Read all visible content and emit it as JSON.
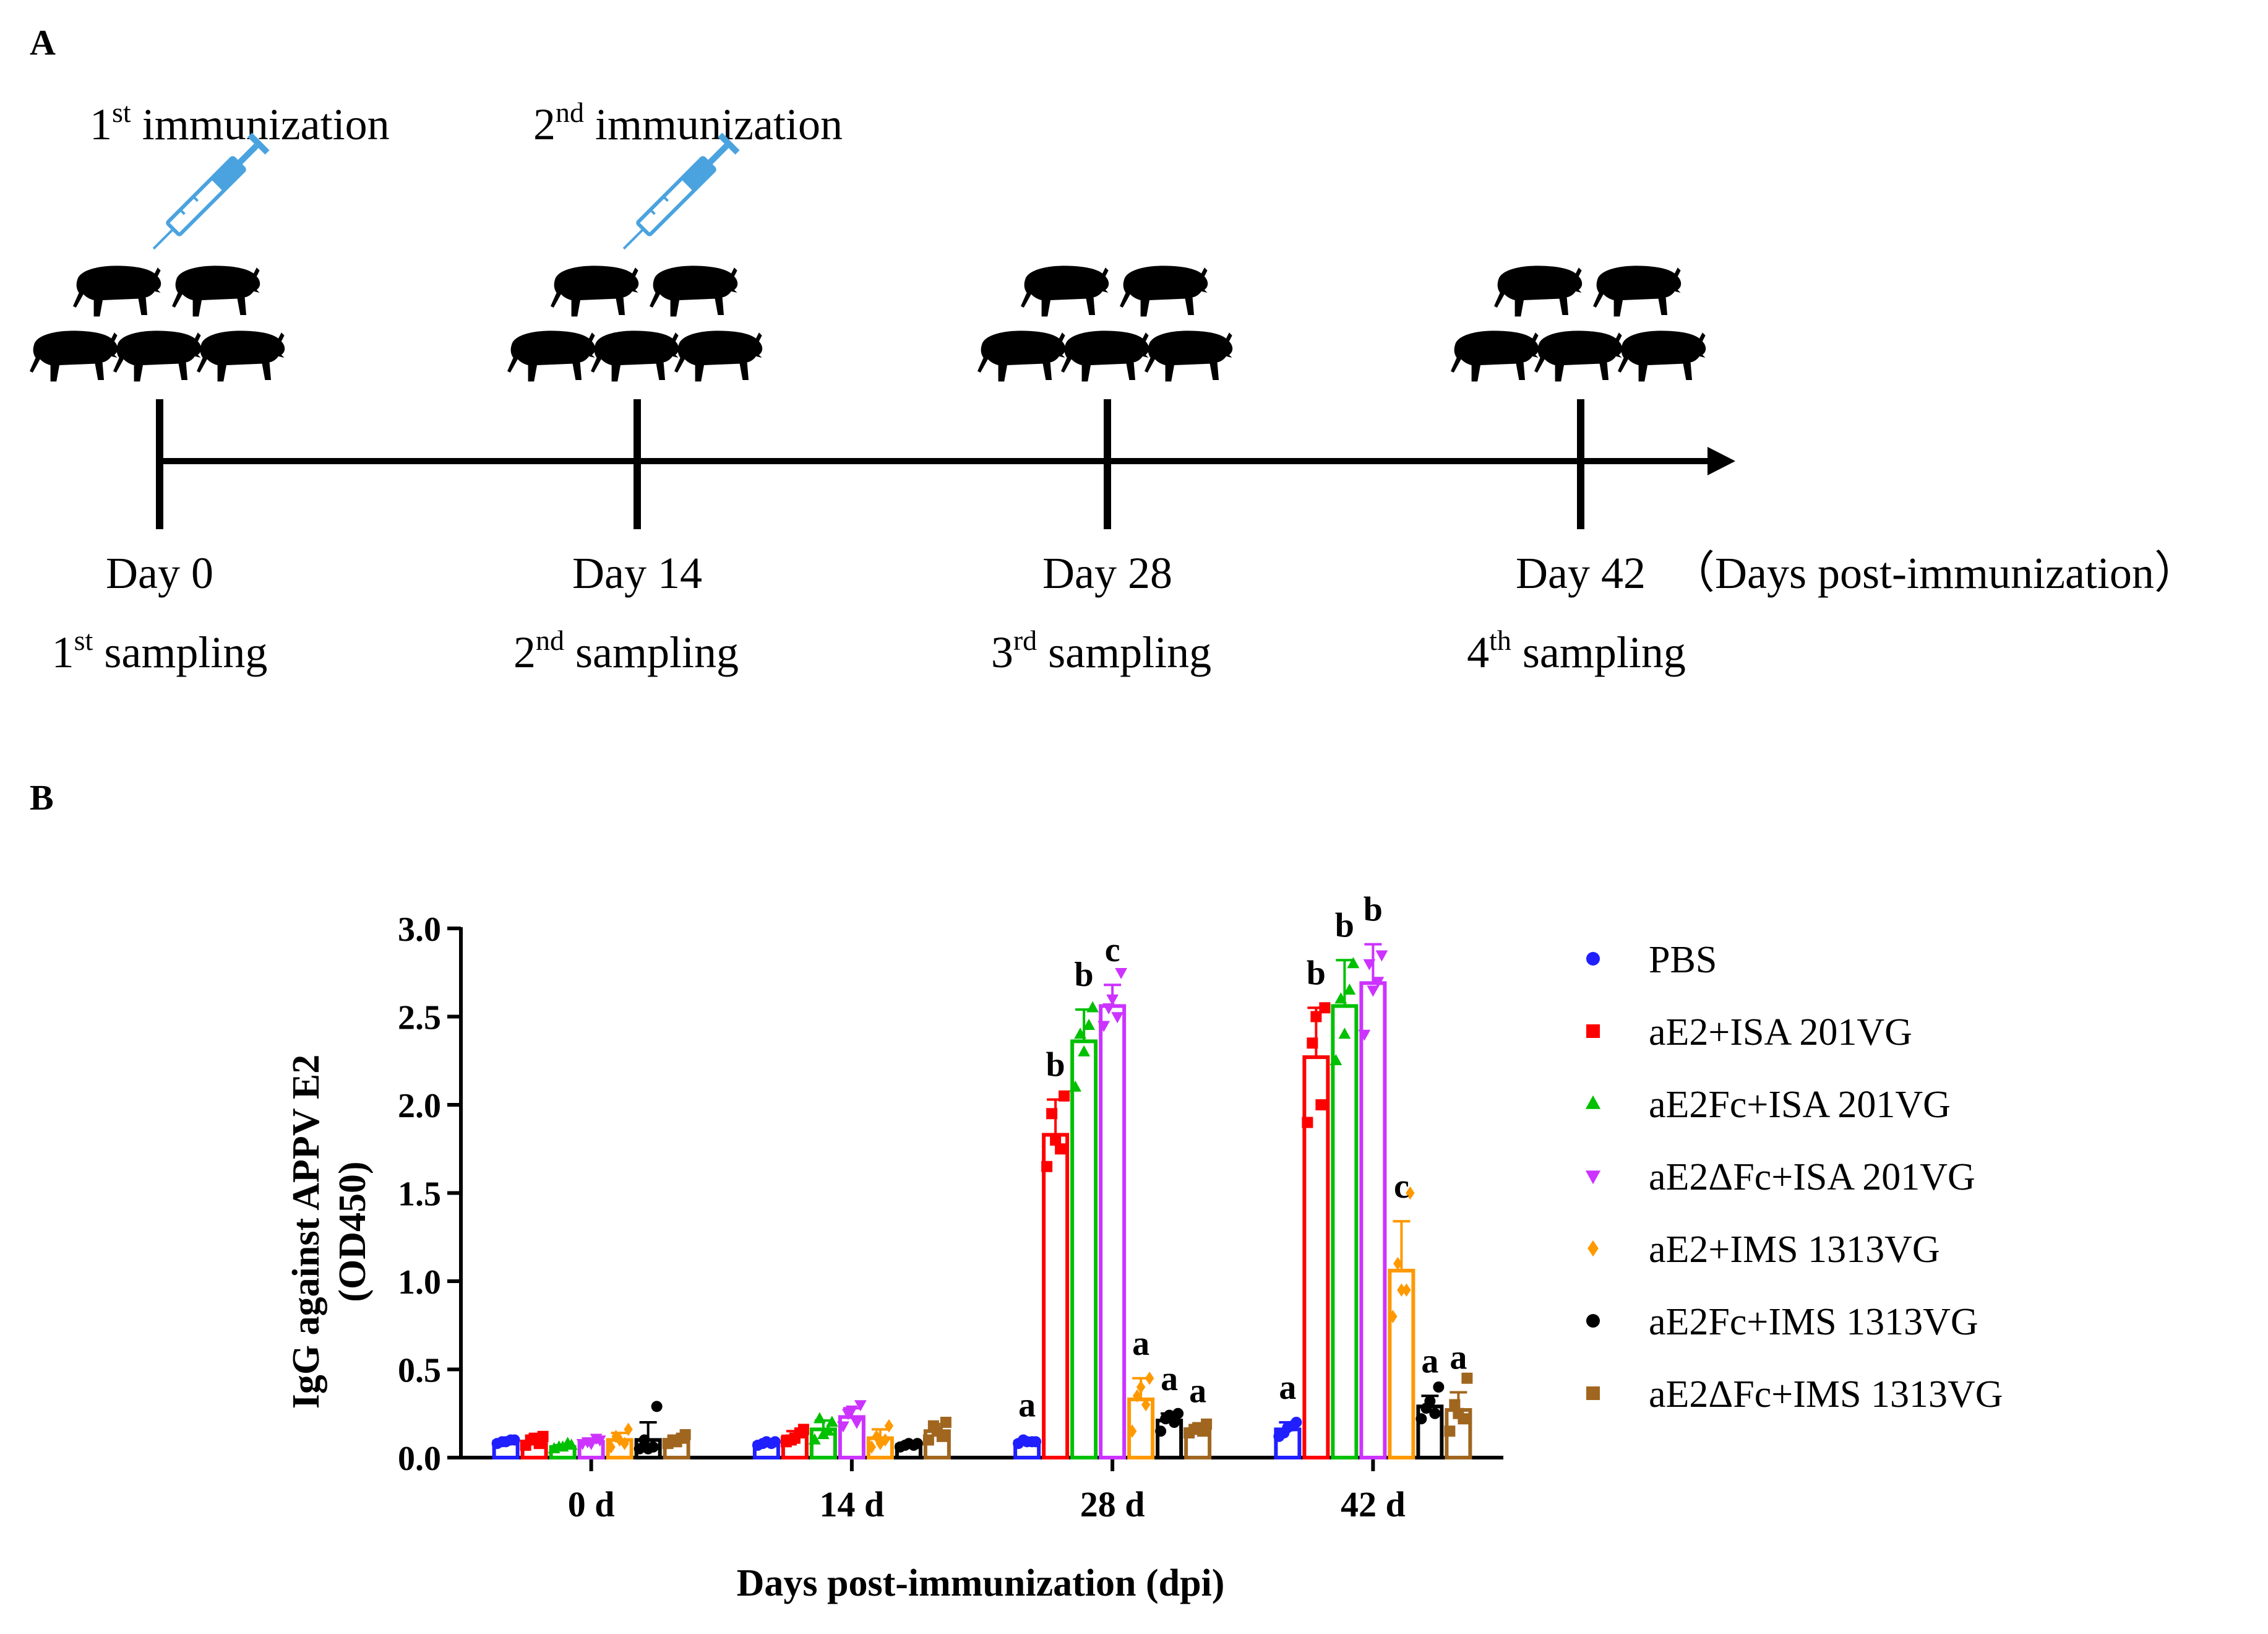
{
  "panel_a": {
    "label": "A",
    "immunizations": [
      {
        "num": "1",
        "sup": "st",
        "text": "immunization"
      },
      {
        "num": "2",
        "sup": "nd",
        "text": "immunization"
      }
    ],
    "timepoints": [
      {
        "day": "Day 0",
        "num": "1",
        "sup": "st",
        "text": "sampling"
      },
      {
        "day": "Day 14",
        "num": "2",
        "sup": "nd",
        "text": "sampling"
      },
      {
        "day": "Day 28",
        "num": "3",
        "sup": "rd",
        "text": "sampling"
      },
      {
        "day": "Day 42",
        "num": "4",
        "sup": "th",
        "text": "sampling"
      }
    ],
    "axis_note": "（Days post-immunization）",
    "icons": {
      "pig": "pig-icon",
      "syringe": "syringe-icon"
    },
    "colors": {
      "syringe": "#4aa3df",
      "pig": "#000000"
    }
  },
  "panel_b": {
    "label": "B"
  },
  "chart_data": {
    "type": "bar",
    "title": "",
    "xlabel": "Days post-immunization (dpi)",
    "ylabel": [
      "IgG against APPV E2",
      "(OD450)"
    ],
    "categories": [
      "0 d",
      "14 d",
      "28 d",
      "42 d"
    ],
    "ylim": [
      0,
      3.0
    ],
    "yticks": [
      "0.0",
      "0.5",
      "1.0",
      "1.5",
      "2.0",
      "2.5",
      "3.0"
    ],
    "grid": false,
    "legend_position": "right",
    "series": [
      {
        "name": "PBS",
        "color": "#1f1fff",
        "marker": "circle",
        "values": [
          0.09,
          0.08,
          0.09,
          0.16
        ],
        "errors": [
          0.01,
          0.01,
          0.01,
          0.04
        ],
        "letters": [
          "",
          "",
          "a",
          "a"
        ],
        "points": [
          [
            0.08,
            0.1,
            0.09,
            0.1,
            0.09
          ],
          [
            0.07,
            0.09,
            0.08,
            0.08,
            0.09
          ],
          [
            0.08,
            0.09,
            0.1,
            0.09,
            0.09
          ],
          [
            0.12,
            0.2,
            0.14,
            0.18,
            0.17
          ]
        ]
      },
      {
        "name": "aE2+ISA 201VG",
        "color": "#ff0000",
        "marker": "square",
        "values": [
          0.09,
          0.12,
          1.83,
          2.27
        ],
        "errors": [
          0.02,
          0.03,
          0.2,
          0.28
        ],
        "letters": [
          "",
          "",
          "b",
          "b"
        ],
        "points": [
          [
            0.07,
            0.12,
            0.1,
            0.08,
            0.11
          ],
          [
            0.09,
            0.16,
            0.1,
            0.14,
            0.11
          ],
          [
            1.65,
            2.05,
            1.95,
            1.75,
            1.8
          ],
          [
            1.9,
            2.55,
            2.35,
            2.0,
            2.5
          ]
        ]
      },
      {
        "name": "aE2Fc+ISA 201VG",
        "color": "#00c000",
        "marker": "triangle",
        "values": [
          0.06,
          0.16,
          2.36,
          2.56
        ],
        "errors": [
          0.01,
          0.05,
          0.18,
          0.26
        ],
        "letters": [
          "",
          "",
          "b",
          "b"
        ],
        "points": [
          [
            0.05,
            0.07,
            0.06,
            0.08,
            0.06
          ],
          [
            0.1,
            0.2,
            0.22,
            0.15,
            0.13
          ],
          [
            2.1,
            2.55,
            2.4,
            2.45,
            2.3
          ],
          [
            2.25,
            2.8,
            2.6,
            2.65,
            2.4
          ]
        ]
      },
      {
        "name": "aE2ΔFc+ISA 201VG",
        "color": "#cc33ff",
        "marker": "triangle-down",
        "values": [
          0.09,
          0.23,
          2.56,
          2.69
        ],
        "errors": [
          0.01,
          0.05,
          0.12,
          0.22
        ],
        "letters": [
          "",
          "",
          "c",
          "b"
        ],
        "points": [
          [
            0.08,
            0.1,
            0.09,
            0.11,
            0.08
          ],
          [
            0.18,
            0.3,
            0.25,
            0.2,
            0.27
          ],
          [
            2.45,
            2.75,
            2.55,
            2.5,
            2.6
          ],
          [
            2.4,
            2.85,
            2.8,
            2.7,
            2.65
          ]
        ]
      },
      {
        "name": "aE2+IMS 1313VG",
        "color": "#ff9900",
        "marker": "diamond",
        "values": [
          0.1,
          0.11,
          0.33,
          1.06
        ],
        "errors": [
          0.04,
          0.05,
          0.12,
          0.28
        ],
        "letters": [
          "",
          "",
          "a",
          "c"
        ],
        "points": [
          [
            0.06,
            0.16,
            0.12,
            0.08,
            0.1
          ],
          [
            0.06,
            0.18,
            0.12,
            0.1,
            0.08
          ],
          [
            0.15,
            0.45,
            0.35,
            0.3,
            0.4
          ],
          [
            0.8,
            1.5,
            1.1,
            0.95,
            0.95
          ]
        ]
      },
      {
        "name": "aE2Fc+IMS 1313VG",
        "color": "#000000",
        "marker": "circle",
        "values": [
          0.1,
          0.07,
          0.21,
          0.29
        ],
        "errors": [
          0.1,
          0.01,
          0.04,
          0.06
        ],
        "letters": [
          "",
          "",
          "a",
          "a"
        ],
        "points": [
          [
            0.05,
            0.29,
            0.1,
            0.06,
            0.05
          ],
          [
            0.06,
            0.08,
            0.07,
            0.07,
            0.08
          ],
          [
            0.15,
            0.25,
            0.22,
            0.2,
            0.24
          ],
          [
            0.22,
            0.4,
            0.28,
            0.25,
            0.32
          ]
        ]
      },
      {
        "name": "aE2ΔFc+IMS 1313VG",
        "color": "#a0661f",
        "marker": "square",
        "values": [
          0.1,
          0.15,
          0.16,
          0.27
        ],
        "errors": [
          0.02,
          0.04,
          0.02,
          0.1
        ],
        "letters": [
          "",
          "",
          "a",
          "a"
        ],
        "points": [
          [
            0.08,
            0.13,
            0.1,
            0.11,
            0.09
          ],
          [
            0.1,
            0.2,
            0.18,
            0.12,
            0.15
          ],
          [
            0.14,
            0.19,
            0.16,
            0.15,
            0.17
          ],
          [
            0.15,
            0.45,
            0.3,
            0.22,
            0.25
          ]
        ]
      }
    ]
  }
}
